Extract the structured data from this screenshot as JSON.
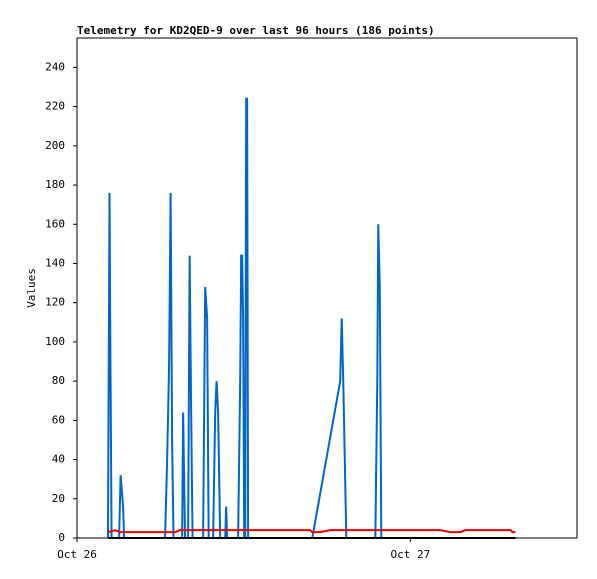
{
  "chart_data": {
    "type": "line",
    "title": "Telemetry for KD2QED-9 over last 96 hours (186 points)",
    "y_label": "Values",
    "xlim": [
      0,
      36
    ],
    "xticks": [
      {
        "value": 0,
        "label": "Oct 26"
      },
      {
        "value": 24,
        "label": "Oct 27"
      }
    ],
    "ylim": [
      0,
      255
    ],
    "yticks": [
      0,
      20,
      40,
      60,
      80,
      100,
      120,
      140,
      160,
      180,
      200,
      220,
      240
    ],
    "series": [
      {
        "color": "#0066cc",
        "x": [
          2.23,
          2.34,
          2.41,
          2.49,
          3.03,
          3.14,
          3.32,
          3.39,
          6.34,
          6.49,
          6.63,
          6.74,
          6.85,
          6.95,
          7.57,
          7.64,
          7.71,
          7.78,
          8.0,
          8.11,
          8.22,
          8.32,
          9.08,
          9.23,
          9.37,
          9.48,
          9.8,
          9.95,
          10.05,
          10.16,
          10.31,
          10.67,
          10.74,
          10.81,
          11.6,
          11.75,
          11.82,
          11.89,
          11.96,
          12.04,
          12.11,
          12.18,
          12.25,
          12.32,
          16.94,
          18.95,
          19.06,
          19.17,
          19.39,
          21.48,
          21.62,
          21.69,
          21.8,
          21.91
        ],
        "values": [
          0,
          176,
          88,
          0,
          0,
          32,
          16,
          0,
          0,
          40,
          88,
          176,
          48,
          0,
          0,
          64,
          32,
          0,
          0,
          144,
          64,
          0,
          0,
          128,
          112,
          0,
          0,
          64,
          80,
          64,
          0,
          0,
          16,
          0,
          0,
          80,
          144,
          144,
          112,
          0,
          0,
          224,
          224,
          0,
          0,
          80,
          112,
          80,
          0,
          0,
          80,
          160,
          128,
          0
        ]
      },
      {
        "color": "#ee0000",
        "x": [
          2.23,
          2.77,
          3.1,
          6.7,
          7.06,
          7.42,
          11.75,
          16.79,
          16.94,
          17.51,
          18.23,
          20.76,
          21.12,
          26.16,
          26.88,
          27.6,
          27.96,
          31.21,
          31.35,
          31.57
        ],
        "values": [
          3,
          4,
          3,
          3,
          3,
          4,
          4,
          4,
          3,
          3,
          4,
          4,
          4,
          4,
          3,
          3,
          4,
          4,
          3,
          3
        ]
      },
      {
        "color": "#000000",
        "x": [
          2.23,
          31.57
        ],
        "values": [
          0,
          0
        ]
      }
    ]
  }
}
